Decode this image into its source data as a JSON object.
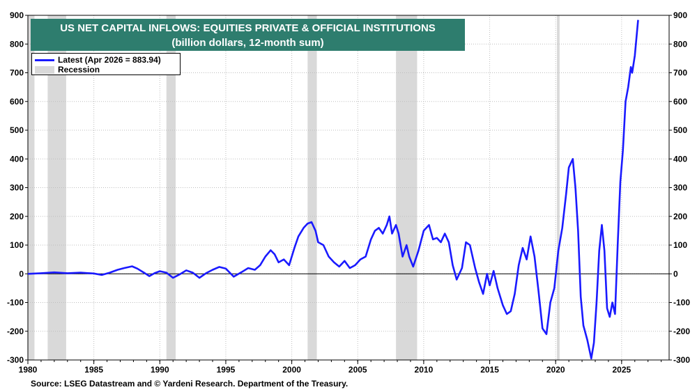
{
  "title": {
    "line1": "US NET CAPITAL INFLOWS: EQUITIES PRIVATE & OFFICIAL INSTITUTIONS",
    "line2": "(billion dollars, 12-month sum)"
  },
  "legend": {
    "series_label": "Latest (Apr 2026 = 883.94)",
    "recession_label": "Recession"
  },
  "source": "Source: LSEG Datastream and © Yardeni Research. Department of the Treasury.",
  "colors": {
    "title_bg": "#2e7d6e",
    "series": "#1a1aff",
    "recession": "#d9d9d9",
    "grid": "#bdbdbd"
  },
  "chart_data": {
    "type": "line",
    "title": "US NET CAPITAL INFLOWS: EQUITIES PRIVATE & OFFICIAL INSTITUTIONS",
    "subtitle": "(billion dollars, 12-month sum)",
    "xlabel": "",
    "ylabel": "",
    "xlim": [
      1980,
      2028.6
    ],
    "ylim": [
      -300,
      900
    ],
    "x_ticks": [
      1980,
      1985,
      1990,
      1995,
      2000,
      2005,
      2010,
      2015,
      2020,
      2025
    ],
    "y_ticks": [
      -300,
      -200,
      -100,
      0,
      100,
      200,
      300,
      400,
      500,
      600,
      700,
      800,
      900
    ],
    "grid": true,
    "dual_y_axis": true,
    "legend_position": "top-left",
    "recessions": [
      [
        1980.0,
        1980.5
      ],
      [
        1981.5,
        1982.9
      ],
      [
        1990.5,
        1991.2
      ],
      [
        2001.2,
        2001.9
      ],
      [
        2007.9,
        2009.5
      ],
      [
        2020.1,
        2020.3
      ]
    ],
    "series": [
      {
        "name": "Latest (Apr 2026 = 883.94)",
        "points": [
          [
            1980.0,
            0
          ],
          [
            1981.0,
            2
          ],
          [
            1982.0,
            5
          ],
          [
            1983.0,
            2
          ],
          [
            1984.0,
            4
          ],
          [
            1985.0,
            1
          ],
          [
            1985.6,
            -4
          ],
          [
            1986.2,
            4
          ],
          [
            1986.8,
            14
          ],
          [
            1987.3,
            20
          ],
          [
            1987.9,
            26
          ],
          [
            1988.3,
            18
          ],
          [
            1988.8,
            4
          ],
          [
            1989.2,
            -8
          ],
          [
            1989.6,
            2
          ],
          [
            1990.0,
            9
          ],
          [
            1990.5,
            4
          ],
          [
            1991.0,
            -14
          ],
          [
            1991.5,
            -2
          ],
          [
            1992.0,
            12
          ],
          [
            1992.5,
            4
          ],
          [
            1993.0,
            -14
          ],
          [
            1993.5,
            2
          ],
          [
            1994.0,
            14
          ],
          [
            1994.5,
            24
          ],
          [
            1995.0,
            18
          ],
          [
            1995.6,
            -10
          ],
          [
            1996.2,
            6
          ],
          [
            1996.7,
            20
          ],
          [
            1997.2,
            14
          ],
          [
            1997.6,
            30
          ],
          [
            1998.0,
            60
          ],
          [
            1998.4,
            82
          ],
          [
            1998.7,
            68
          ],
          [
            1999.0,
            40
          ],
          [
            1999.4,
            50
          ],
          [
            1999.8,
            30
          ],
          [
            2000.2,
            90
          ],
          [
            2000.5,
            130
          ],
          [
            2000.9,
            160
          ],
          [
            2001.2,
            175
          ],
          [
            2001.5,
            180
          ],
          [
            2001.8,
            150
          ],
          [
            2002.0,
            110
          ],
          [
            2002.4,
            100
          ],
          [
            2002.8,
            60
          ],
          [
            2003.2,
            40
          ],
          [
            2003.6,
            25
          ],
          [
            2004.0,
            45
          ],
          [
            2004.4,
            20
          ],
          [
            2004.8,
            30
          ],
          [
            2005.2,
            50
          ],
          [
            2005.6,
            60
          ],
          [
            2006.0,
            120
          ],
          [
            2006.3,
            150
          ],
          [
            2006.6,
            160
          ],
          [
            2006.9,
            140
          ],
          [
            2007.2,
            170
          ],
          [
            2007.4,
            200
          ],
          [
            2007.6,
            140
          ],
          [
            2007.9,
            170
          ],
          [
            2008.1,
            140
          ],
          [
            2008.4,
            60
          ],
          [
            2008.7,
            100
          ],
          [
            2008.9,
            60
          ],
          [
            2009.2,
            25
          ],
          [
            2009.6,
            80
          ],
          [
            2010.0,
            150
          ],
          [
            2010.4,
            170
          ],
          [
            2010.7,
            120
          ],
          [
            2011.0,
            125
          ],
          [
            2011.3,
            110
          ],
          [
            2011.6,
            140
          ],
          [
            2011.9,
            110
          ],
          [
            2012.2,
            30
          ],
          [
            2012.5,
            -20
          ],
          [
            2012.9,
            20
          ],
          [
            2013.2,
            110
          ],
          [
            2013.5,
            100
          ],
          [
            2013.9,
            20
          ],
          [
            2014.2,
            -30
          ],
          [
            2014.5,
            -70
          ],
          [
            2014.8,
            0
          ],
          [
            2015.0,
            -40
          ],
          [
            2015.3,
            10
          ],
          [
            2015.6,
            -50
          ],
          [
            2016.0,
            -110
          ],
          [
            2016.3,
            -140
          ],
          [
            2016.6,
            -130
          ],
          [
            2016.9,
            -70
          ],
          [
            2017.2,
            30
          ],
          [
            2017.5,
            90
          ],
          [
            2017.8,
            50
          ],
          [
            2018.1,
            130
          ],
          [
            2018.4,
            60
          ],
          [
            2018.7,
            -60
          ],
          [
            2019.0,
            -190
          ],
          [
            2019.3,
            -210
          ],
          [
            2019.6,
            -100
          ],
          [
            2019.9,
            -50
          ],
          [
            2020.2,
            80
          ],
          [
            2020.5,
            160
          ],
          [
            2020.8,
            280
          ],
          [
            2021.0,
            370
          ],
          [
            2021.3,
            400
          ],
          [
            2021.5,
            300
          ],
          [
            2021.7,
            150
          ],
          [
            2021.9,
            -80
          ],
          [
            2022.1,
            -180
          ],
          [
            2022.4,
            -230
          ],
          [
            2022.7,
            -295
          ],
          [
            2022.9,
            -240
          ],
          [
            2023.1,
            -100
          ],
          [
            2023.3,
            80
          ],
          [
            2023.5,
            170
          ],
          [
            2023.7,
            80
          ],
          [
            2023.9,
            -120
          ],
          [
            2024.1,
            -150
          ],
          [
            2024.3,
            -100
          ],
          [
            2024.5,
            -140
          ],
          [
            2024.7,
            100
          ],
          [
            2024.9,
            320
          ],
          [
            2025.1,
            430
          ],
          [
            2025.3,
            600
          ],
          [
            2025.5,
            650
          ],
          [
            2025.7,
            720
          ],
          [
            2025.8,
            700
          ],
          [
            2026.0,
            760
          ],
          [
            2026.25,
            883.94
          ]
        ]
      }
    ]
  }
}
